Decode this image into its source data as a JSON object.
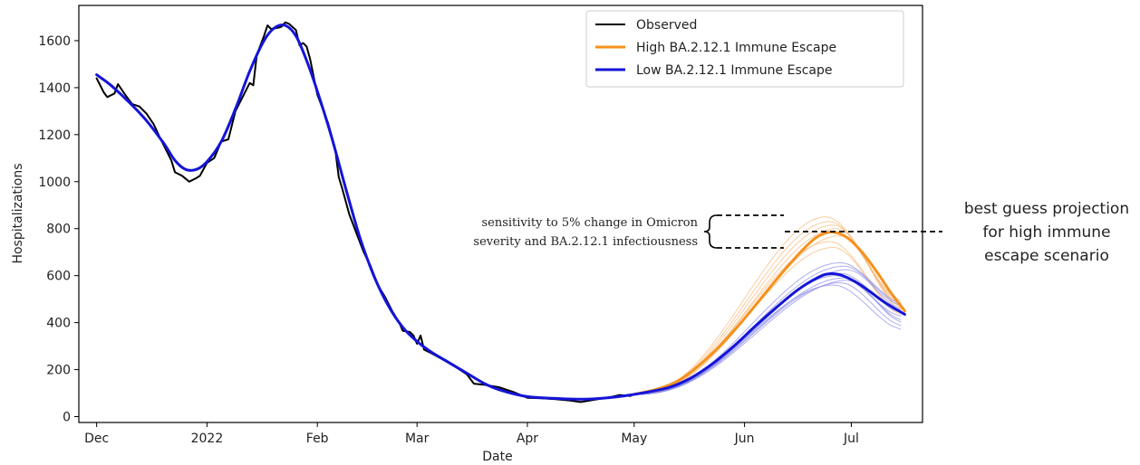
{
  "chart_data": {
    "type": "line",
    "xlabel": "Date",
    "ylabel": "Hospitalizations",
    "x_ticks": [
      "Dec",
      "2022",
      "Feb",
      "Mar",
      "Apr",
      "May",
      "Jun",
      "Jul"
    ],
    "x_tick_dates": [
      "2021-12-01",
      "2022-01-01",
      "2022-02-01",
      "2022-03-01",
      "2022-04-01",
      "2022-05-01",
      "2022-06-01",
      "2022-07-01"
    ],
    "xlim": [
      "2021-11-26",
      "2022-07-21"
    ],
    "ylim": [
      -25,
      1750
    ],
    "y_ticks": [
      0,
      200,
      400,
      600,
      800,
      1000,
      1200,
      1400,
      1600
    ],
    "legend_position": "top-right",
    "legend": [
      {
        "label": "Observed",
        "color": "#000000"
      },
      {
        "label": "High BA.2.12.1 Immune Escape",
        "color": "#f5911e"
      },
      {
        "label": "Low BA.2.12.1 Immune Escape",
        "color": "#1414d8"
      }
    ],
    "series": [
      {
        "name": "Observed",
        "color": "#000000",
        "points": [
          [
            "2021-12-01",
            1440
          ],
          [
            "2021-12-03",
            1380
          ],
          [
            "2021-12-04",
            1360
          ],
          [
            "2021-12-06",
            1375
          ],
          [
            "2021-12-07",
            1415
          ],
          [
            "2021-12-09",
            1370
          ],
          [
            "2021-12-11",
            1330
          ],
          [
            "2021-12-13",
            1320
          ],
          [
            "2021-12-15",
            1290
          ],
          [
            "2021-12-17",
            1245
          ],
          [
            "2021-12-19",
            1180
          ],
          [
            "2021-12-21",
            1120
          ],
          [
            "2021-12-22",
            1090
          ],
          [
            "2021-12-23",
            1040
          ],
          [
            "2021-12-25",
            1025
          ],
          [
            "2021-12-27",
            1000
          ],
          [
            "2021-12-29",
            1015
          ],
          [
            "2021-12-30",
            1025
          ],
          [
            "2022-01-01",
            1080
          ],
          [
            "2022-01-03",
            1100
          ],
          [
            "2022-01-05",
            1170
          ],
          [
            "2022-01-07",
            1180
          ],
          [
            "2022-01-09",
            1300
          ],
          [
            "2022-01-11",
            1360
          ],
          [
            "2022-01-13",
            1420
          ],
          [
            "2022-01-14",
            1410
          ],
          [
            "2022-01-15",
            1540
          ],
          [
            "2022-01-17",
            1620
          ],
          [
            "2022-01-18",
            1665
          ],
          [
            "2022-01-19",
            1650
          ],
          [
            "2022-01-21",
            1655
          ],
          [
            "2022-01-22",
            1660
          ],
          [
            "2022-01-23",
            1678
          ],
          [
            "2022-01-24",
            1672
          ],
          [
            "2022-01-26",
            1645
          ],
          [
            "2022-01-27",
            1580
          ],
          [
            "2022-01-28",
            1590
          ],
          [
            "2022-01-29",
            1575
          ],
          [
            "2022-01-30",
            1520
          ],
          [
            "2022-02-01",
            1370
          ],
          [
            "2022-02-04",
            1250
          ],
          [
            "2022-02-06",
            1140
          ],
          [
            "2022-02-07",
            1020
          ],
          [
            "2022-02-08",
            970
          ],
          [
            "2022-02-10",
            860
          ],
          [
            "2022-02-12",
            780
          ],
          [
            "2022-02-14",
            700
          ],
          [
            "2022-02-16",
            640
          ],
          [
            "2022-02-18",
            560
          ],
          [
            "2022-02-20",
            510
          ],
          [
            "2022-02-22",
            450
          ],
          [
            "2022-02-24",
            400
          ],
          [
            "2022-02-25",
            365
          ],
          [
            "2022-02-27",
            360
          ],
          [
            "2022-02-28",
            345
          ],
          [
            "2022-03-01",
            310
          ],
          [
            "2022-03-02",
            345
          ],
          [
            "2022-03-03",
            285
          ],
          [
            "2022-03-05",
            270
          ],
          [
            "2022-03-08",
            245
          ],
          [
            "2022-03-12",
            210
          ],
          [
            "2022-03-15",
            180
          ],
          [
            "2022-03-17",
            140
          ],
          [
            "2022-03-20",
            135
          ],
          [
            "2022-03-24",
            125
          ],
          [
            "2022-03-28",
            105
          ],
          [
            "2022-04-01",
            80
          ],
          [
            "2022-04-05",
            78
          ],
          [
            "2022-04-09",
            74
          ],
          [
            "2022-04-13",
            68
          ],
          [
            "2022-04-16",
            62
          ],
          [
            "2022-04-20",
            72
          ],
          [
            "2022-04-24",
            82
          ],
          [
            "2022-04-27",
            92
          ],
          [
            "2022-04-30",
            88
          ]
        ]
      },
      {
        "name": "High BA.2.12.1 Immune Escape",
        "color": "#f5911e",
        "points": [
          [
            "2022-05-01",
            95
          ],
          [
            "2022-05-07",
            115
          ],
          [
            "2022-05-13",
            150
          ],
          [
            "2022-05-19",
            215
          ],
          [
            "2022-05-25",
            300
          ],
          [
            "2022-05-31",
            400
          ],
          [
            "2022-06-06",
            510
          ],
          [
            "2022-06-12",
            620
          ],
          [
            "2022-06-18",
            720
          ],
          [
            "2022-06-22",
            770
          ],
          [
            "2022-06-26",
            785
          ],
          [
            "2022-06-30",
            760
          ],
          [
            "2022-07-04",
            700
          ],
          [
            "2022-07-08",
            620
          ],
          [
            "2022-07-12",
            530
          ],
          [
            "2022-07-16",
            450
          ]
        ]
      },
      {
        "name": "Low BA.2.12.1 Immune Escape",
        "color": "#1414d8",
        "points": [
          [
            "2021-12-01",
            1455
          ],
          [
            "2021-12-05",
            1410
          ],
          [
            "2021-12-10",
            1340
          ],
          [
            "2021-12-15",
            1260
          ],
          [
            "2021-12-20",
            1160
          ],
          [
            "2021-12-23",
            1090
          ],
          [
            "2021-12-26",
            1052
          ],
          [
            "2021-12-29",
            1052
          ],
          [
            "2022-01-01",
            1085
          ],
          [
            "2022-01-05",
            1170
          ],
          [
            "2022-01-09",
            1310
          ],
          [
            "2022-01-13",
            1470
          ],
          [
            "2022-01-17",
            1600
          ],
          [
            "2022-01-20",
            1655
          ],
          [
            "2022-01-23",
            1665
          ],
          [
            "2022-01-26",
            1620
          ],
          [
            "2022-01-29",
            1515
          ],
          [
            "2022-02-01",
            1385
          ],
          [
            "2022-02-05",
            1190
          ],
          [
            "2022-02-09",
            970
          ],
          [
            "2022-02-13",
            760
          ],
          [
            "2022-02-17",
            595
          ],
          [
            "2022-02-21",
            470
          ],
          [
            "2022-02-25",
            380
          ],
          [
            "2022-03-01",
            320
          ],
          [
            "2022-03-05",
            275
          ],
          [
            "2022-03-10",
            230
          ],
          [
            "2022-03-15",
            185
          ],
          [
            "2022-03-20",
            140
          ],
          [
            "2022-03-25",
            110
          ],
          [
            "2022-04-01",
            85
          ],
          [
            "2022-04-08",
            78
          ],
          [
            "2022-04-15",
            74
          ],
          [
            "2022-04-22",
            78
          ],
          [
            "2022-04-29",
            90
          ],
          [
            "2022-05-05",
            105
          ],
          [
            "2022-05-11",
            125
          ],
          [
            "2022-05-17",
            165
          ],
          [
            "2022-05-23",
            225
          ],
          [
            "2022-05-29",
            300
          ],
          [
            "2022-06-04",
            385
          ],
          [
            "2022-06-10",
            465
          ],
          [
            "2022-06-16",
            540
          ],
          [
            "2022-06-22",
            595
          ],
          [
            "2022-06-25",
            608
          ],
          [
            "2022-06-28",
            603
          ],
          [
            "2022-07-02",
            575
          ],
          [
            "2022-07-06",
            535
          ],
          [
            "2022-07-10",
            490
          ],
          [
            "2022-07-16",
            435
          ]
        ]
      }
    ],
    "ensembles": [
      {
        "name": "High BA.2.12.1 Immune Escape",
        "color": "#f5b877",
        "peak_date": [
          "2022-06-24",
          "2022-06-25",
          "2022-06-26",
          "2022-06-27",
          "2022-06-28",
          "2022-06-25",
          "2022-06-26"
        ],
        "peak": [
          850,
          830,
          815,
          800,
          770,
          745,
          720
        ],
        "end": [
          490,
          480,
          470,
          460,
          450,
          440,
          430
        ]
      },
      {
        "name": "Low BA.2.12.1 Immune Escape",
        "color": "#8a8ae8",
        "peak_date": [
          "2022-06-28",
          "2022-06-29",
          "2022-06-30",
          "2022-06-28",
          "2022-06-27",
          "2022-06-29",
          "2022-06-30",
          "2022-06-28",
          "2022-06-26"
        ],
        "peak": [
          655,
          640,
          625,
          610,
          600,
          590,
          580,
          570,
          560
        ],
        "end": [
          480,
          470,
          455,
          440,
          425,
          410,
          400,
          385,
          370
        ]
      }
    ],
    "annotations": {
      "sensitivity_line1": "sensitivity to 5% change in Omicron",
      "sensitivity_line2": "severity and BA.2.12.1 infectiousness",
      "best_guess_line1": "best guess projection",
      "best_guess_line2": "for high immune",
      "best_guess_line3": "escape scenario"
    }
  }
}
